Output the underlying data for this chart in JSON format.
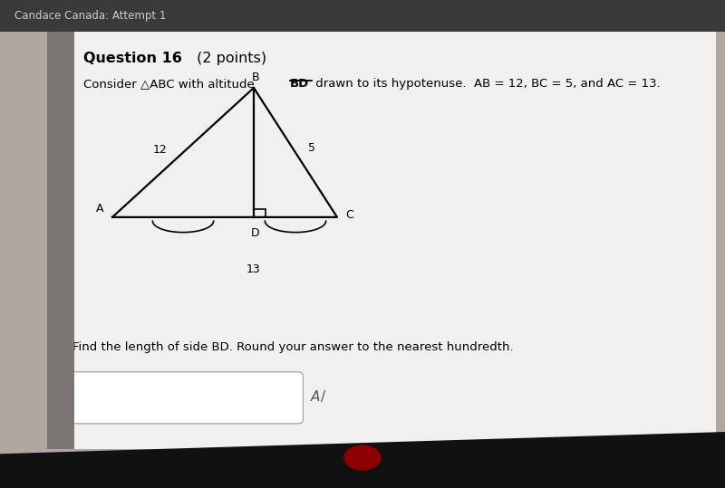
{
  "top_bar_text": "Candace Canada: Attempt 1",
  "top_bar_color": "#3a3a3a",
  "top_bar_text_color": "#cccccc",
  "bg_color": "#b0a8a0",
  "card_color": "#f2f0ee",
  "left_bar_color": "#7a7570",
  "bottom_bar_color": "#111111",
  "title_bold": "Question 16",
  "title_normal": " (2 points)",
  "header_pre": "Consider △ABC with altitude ",
  "header_bd": "BD",
  "header_post": " drawn to its hypotenuse.  AB = 12, BC = 5, and AC = 13.",
  "question_text": "Find the length of side BD. Round your answer to the nearest hundredth.",
  "label_A": "A",
  "label_B": "B",
  "label_C": "C",
  "label_D": "D",
  "label_12": "12",
  "label_5": "5",
  "label_13": "13",
  "tri_A": [
    0.155,
    0.555
  ],
  "tri_B": [
    0.35,
    0.82
  ],
  "tri_C": [
    0.465,
    0.555
  ],
  "tri_D": [
    0.35,
    0.555
  ],
  "sq_size": 0.016,
  "arc_r": 0.042,
  "arc_yscale": 0.55
}
